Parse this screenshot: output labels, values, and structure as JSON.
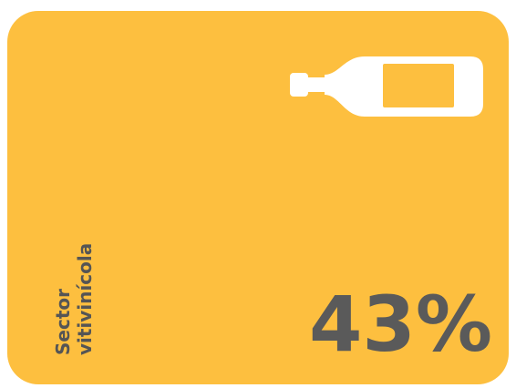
{
  "card": {
    "label_lines": [
      "Sector",
      "vitivinícola"
    ],
    "value": "43%"
  }
}
